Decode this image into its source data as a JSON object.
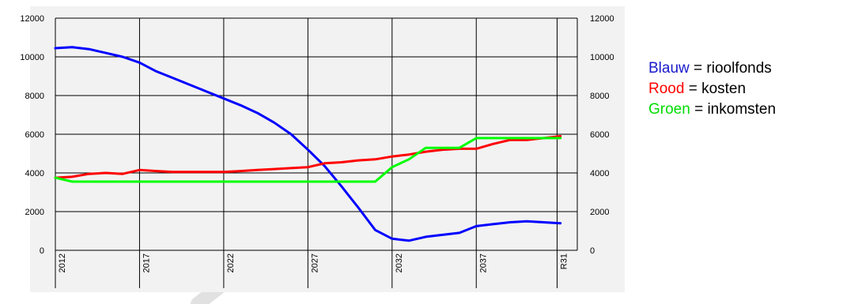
{
  "chart_data": {
    "type": "line",
    "title": "",
    "xlabel": "",
    "ylabel": "",
    "xlim": [
      2012,
      2043
    ],
    "ylim": [
      0,
      12000
    ],
    "grid": true,
    "y_ticks": [
      0,
      2000,
      4000,
      6000,
      8000,
      10000,
      12000
    ],
    "y_tick_labels": [
      "0",
      "2000",
      "4000",
      "6000",
      "8000",
      "10000",
      "12000"
    ],
    "x_ticks": [
      2012,
      2017,
      2022,
      2027,
      2032,
      2037
    ],
    "x_tick_labels": [
      "2012",
      "2017",
      "2022",
      "2027",
      "2032",
      "2037"
    ],
    "x_end_label": "R31",
    "series": [
      {
        "key": "blauw",
        "color": "#0000ff",
        "x": [
          2012,
          2013,
          2014,
          2015,
          2016,
          2017,
          2018,
          2019,
          2020,
          2021,
          2022,
          2023,
          2024,
          2025,
          2026,
          2027,
          2028,
          2029,
          2030,
          2031,
          2032,
          2033,
          2034,
          2035,
          2036,
          2037,
          2038,
          2039,
          2040,
          2041,
          2042
        ],
        "values": [
          10450,
          10500,
          10400,
          10200,
          10000,
          9700,
          9250,
          8900,
          8550,
          8200,
          7850,
          7500,
          7100,
          6600,
          6000,
          5200,
          4350,
          3300,
          2200,
          1050,
          600,
          500,
          700,
          800,
          900,
          1250,
          1350,
          1450,
          1500,
          1450,
          1400
        ]
      },
      {
        "key": "rood",
        "color": "#ff0000",
        "x": [
          2012,
          2013,
          2014,
          2015,
          2016,
          2017,
          2018,
          2019,
          2020,
          2021,
          2022,
          2023,
          2024,
          2025,
          2026,
          2027,
          2028,
          2029,
          2030,
          2031,
          2032,
          2033,
          2034,
          2035,
          2036,
          2037,
          2038,
          2039,
          2040,
          2041,
          2042
        ],
        "values": [
          3750,
          3800,
          3950,
          4000,
          3950,
          4150,
          4100,
          4050,
          4050,
          4050,
          4050,
          4100,
          4150,
          4200,
          4250,
          4300,
          4500,
          4550,
          4650,
          4700,
          4850,
          4950,
          5100,
          5200,
          5250,
          5250,
          5500,
          5700,
          5700,
          5800,
          5900
        ]
      },
      {
        "key": "groen",
        "color": "#00ff00",
        "x": [
          2012,
          2013,
          2014,
          2015,
          2016,
          2017,
          2018,
          2019,
          2020,
          2021,
          2022,
          2023,
          2024,
          2025,
          2026,
          2027,
          2028,
          2029,
          2030,
          2031,
          2032,
          2033,
          2034,
          2035,
          2036,
          2037,
          2038,
          2039,
          2040,
          2041,
          2042
        ],
        "values": [
          3750,
          3550,
          3550,
          3550,
          3550,
          3550,
          3550,
          3550,
          3550,
          3550,
          3550,
          3550,
          3550,
          3550,
          3550,
          3550,
          3550,
          3550,
          3550,
          3550,
          4300,
          4700,
          5300,
          5300,
          5300,
          5800,
          5800,
          5800,
          5800,
          5800,
          5800
        ]
      }
    ]
  },
  "legend": [
    {
      "color_word": "Blauw",
      "rest": " = rioolfonds",
      "color": "#1a1acc"
    },
    {
      "color_word": "Rood",
      "rest": " = kosten",
      "color": "#ff0000"
    },
    {
      "color_word": "Groen",
      "rest": " = inkomsten",
      "color": "#00dd00"
    }
  ],
  "colors": {
    "plot_background": "#f2f2f2",
    "grid": "#000000"
  }
}
